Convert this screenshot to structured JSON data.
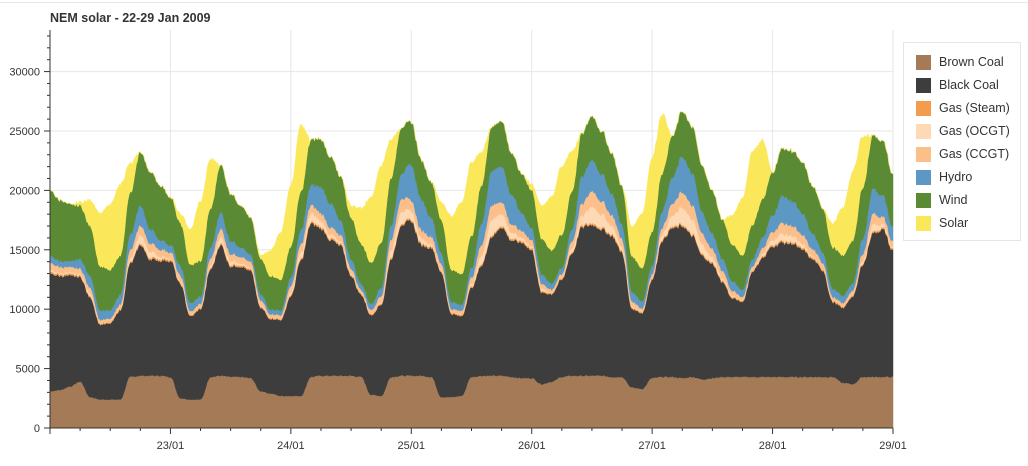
{
  "chart_data": {
    "type": "area",
    "stacked": true,
    "title": "NEM solar - 22-29 Jan 2009",
    "xlabel": "",
    "ylabel": "",
    "x_range": [
      "2009-01-22 00:00",
      "2009-01-29 00:00"
    ],
    "x_ticks": [
      "23/01",
      "24/01",
      "25/01",
      "26/01",
      "27/01",
      "28/01",
      "29/01"
    ],
    "y_ticks": [
      0,
      5000,
      10000,
      15000,
      20000,
      25000,
      30000
    ],
    "ylim": [
      0,
      33500
    ],
    "grid": true,
    "legend_position": "right",
    "time_hours": [
      0,
      2,
      4,
      6,
      8,
      10,
      12,
      14,
      16,
      18,
      20,
      22,
      24,
      26,
      28,
      30,
      32,
      34,
      36,
      38,
      40,
      42,
      44,
      46,
      48,
      50,
      52,
      54,
      56,
      58,
      60,
      62,
      64,
      66,
      68,
      70,
      72,
      74,
      76,
      78,
      80,
      82,
      84,
      86,
      88,
      90,
      92,
      94,
      96,
      98,
      100,
      102,
      104,
      106,
      108,
      110,
      112,
      114,
      116,
      118,
      120,
      122,
      124,
      126,
      128,
      130,
      132,
      134,
      136,
      138,
      140,
      142,
      144,
      146,
      148,
      150,
      152,
      154,
      156,
      158,
      160,
      162,
      164,
      166,
      168
    ],
    "series": [
      {
        "name": "Brown Coal",
        "color": "#a57a56",
        "values": [
          3100,
          3200,
          3500,
          3900,
          2600,
          2400,
          2400,
          2400,
          4300,
          4400,
          4400,
          4400,
          4300,
          2500,
          2400,
          2400,
          4300,
          4400,
          4300,
          4300,
          4200,
          3100,
          2900,
          2700,
          2700,
          2700,
          4300,
          4400,
          4400,
          4400,
          4400,
          4300,
          2800,
          2700,
          4300,
          4400,
          4400,
          4400,
          4300,
          2600,
          2600,
          2700,
          4300,
          4400,
          4400,
          4400,
          4300,
          4200,
          4200,
          3700,
          3900,
          4300,
          4400,
          4400,
          4400,
          4400,
          4300,
          4300,
          3400,
          3300,
          4200,
          4300,
          4300,
          4200,
          4300,
          4100,
          4200,
          4300,
          4300,
          4300,
          4300,
          4300,
          4300,
          4300,
          4300,
          4300,
          4300,
          4300,
          4300,
          3800,
          3700,
          4300,
          4300,
          4300,
          4300
        ]
      },
      {
        "name": "Black Coal",
        "color": "#3d3d3d",
        "values": [
          9900,
          9600,
          9300,
          8800,
          8400,
          6300,
          6400,
          7500,
          9500,
          11000,
          9800,
          9700,
          9800,
          9600,
          7000,
          7600,
          9100,
          11000,
          9300,
          9300,
          9000,
          7000,
          6300,
          6400,
          8400,
          11400,
          12900,
          12400,
          11400,
          10900,
          8400,
          6900,
          6700,
          7700,
          10000,
          12700,
          13000,
          11000,
          10900,
          10500,
          7000,
          6700,
          7500,
          9300,
          11700,
          12500,
          11500,
          11400,
          10800,
          7700,
          7400,
          8200,
          10300,
          12500,
          12700,
          12300,
          11900,
          10500,
          6600,
          6400,
          8300,
          11500,
          12500,
          12800,
          11900,
          10400,
          9600,
          8000,
          6600,
          6300,
          8900,
          10000,
          11000,
          11300,
          11200,
          10700,
          9900,
          9000,
          6300,
          6300,
          7400,
          9500,
          12100,
          12400,
          10600
        ]
      },
      {
        "name": "Gas (Steam)",
        "color": "#f39c4e",
        "values": [
          150,
          150,
          150,
          150,
          120,
          100,
          100,
          100,
          120,
          150,
          150,
          150,
          150,
          120,
          100,
          100,
          120,
          150,
          150,
          150,
          150,
          120,
          100,
          100,
          120,
          150,
          150,
          150,
          150,
          150,
          120,
          100,
          100,
          120,
          150,
          150,
          150,
          150,
          150,
          120,
          100,
          100,
          120,
          150,
          150,
          150,
          150,
          150,
          150,
          120,
          100,
          100,
          120,
          150,
          150,
          150,
          150,
          150,
          120,
          100,
          100,
          120,
          150,
          150,
          150,
          150,
          150,
          150,
          120,
          100,
          100,
          120,
          150,
          150,
          150,
          150,
          150,
          150,
          120,
          100,
          100,
          120,
          150,
          150,
          150
        ]
      },
      {
        "name": "Gas (OCGT)",
        "color": "#fdd9b5",
        "values": [
          150,
          120,
          100,
          120,
          200,
          0,
          0,
          0,
          300,
          700,
          500,
          200,
          100,
          100,
          0,
          0,
          200,
          500,
          300,
          150,
          100,
          100,
          0,
          0,
          200,
          500,
          700,
          500,
          300,
          150,
          100,
          0,
          0,
          100,
          600,
          1000,
          700,
          400,
          200,
          100,
          0,
          0,
          200,
          700,
          1300,
          1000,
          500,
          250,
          150,
          200,
          0,
          0,
          300,
          800,
          1400,
          1100,
          700,
          300,
          100,
          0,
          0,
          400,
          900,
          1400,
          1200,
          800,
          400,
          200,
          100,
          0,
          0,
          200,
          400,
          600,
          500,
          300,
          100,
          0,
          0,
          0,
          0,
          200,
          600,
          300,
          100
        ]
      },
      {
        "name": "Gas (CCGT)",
        "color": "#fdbf8a",
        "values": [
          600,
          500,
          450,
          450,
          500,
          300,
          300,
          400,
          700,
          800,
          700,
          600,
          500,
          500,
          300,
          350,
          600,
          700,
          600,
          550,
          500,
          400,
          300,
          300,
          550,
          700,
          700,
          650,
          600,
          550,
          400,
          300,
          350,
          500,
          900,
          1100,
          900,
          700,
          600,
          500,
          300,
          350,
          550,
          900,
          1200,
          1000,
          700,
          600,
          550,
          400,
          300,
          350,
          600,
          1000,
          1300,
          1100,
          900,
          700,
          400,
          300,
          350,
          600,
          1000,
          1300,
          1200,
          900,
          700,
          600,
          400,
          300,
          350,
          500,
          700,
          900,
          850,
          750,
          600,
          500,
          300,
          300,
          400,
          600,
          900,
          600,
          500
        ]
      },
      {
        "name": "Hydro",
        "color": "#5d97c3",
        "values": [
          600,
          500,
          500,
          800,
          1000,
          800,
          700,
          800,
          1300,
          1700,
          1200,
          800,
          600,
          800,
          700,
          600,
          900,
          1400,
          1100,
          800,
          600,
          500,
          400,
          400,
          700,
          1200,
          1700,
          2200,
          2000,
          1200,
          800,
          500,
          500,
          700,
          1200,
          2100,
          3000,
          2600,
          1600,
          900,
          600,
          500,
          800,
          1800,
          2900,
          3000,
          2500,
          1500,
          1000,
          800,
          500,
          500,
          1000,
          2300,
          2600,
          2300,
          1800,
          1200,
          800,
          600,
          700,
          1400,
          2200,
          3000,
          2700,
          1800,
          1300,
          1000,
          800,
          600,
          600,
          900,
          1400,
          2300,
          2100,
          1800,
          1300,
          900,
          700,
          600,
          600,
          1300,
          2100,
          1800,
          1200
        ]
      },
      {
        "name": "Wind",
        "color": "#5a8b34",
        "values": [
          5500,
          5100,
          4800,
          4500,
          4200,
          3700,
          3400,
          3300,
          3500,
          4500,
          4800,
          4600,
          4000,
          3600,
          3200,
          3000,
          3300,
          4000,
          4000,
          3500,
          3100,
          3000,
          2800,
          2600,
          2600,
          3200,
          3800,
          4000,
          3900,
          3700,
          3500,
          3400,
          3500,
          3800,
          4000,
          3900,
          3600,
          3300,
          3000,
          2800,
          2700,
          2600,
          2700,
          3200,
          3700,
          3800,
          3500,
          3300,
          3200,
          3000,
          2800,
          2800,
          3200,
          3600,
          3700,
          3600,
          3400,
          3200,
          3000,
          2800,
          2900,
          3200,
          3500,
          3800,
          3900,
          3900,
          3600,
          3300,
          3100,
          2900,
          2900,
          3200,
          3600,
          4000,
          4200,
          4300,
          4000,
          3700,
          3500,
          3400,
          3600,
          4300,
          4500,
          4600,
          4400
        ]
      },
      {
        "name": "Solar",
        "color": "#fbe85a",
        "values": [
          0,
          0,
          0,
          300,
          2200,
          4500,
          5500,
          6000,
          2500,
          0,
          0,
          0,
          0,
          800,
          3000,
          5000,
          4200,
          0,
          0,
          0,
          0,
          300,
          2200,
          4000,
          5200,
          5700,
          0,
          0,
          0,
          0,
          1000,
          3000,
          5500,
          6500,
          3200,
          0,
          0,
          0,
          0,
          1500,
          4500,
          6000,
          6200,
          2800,
          0,
          0,
          0,
          0,
          500,
          2800,
          4500,
          5800,
          3400,
          0,
          0,
          0,
          0,
          0,
          2500,
          4600,
          6200,
          5000,
          0,
          0,
          0,
          0,
          0,
          0,
          2500,
          4800,
          6200,
          5000,
          0,
          0,
          0,
          0,
          0,
          0,
          2000,
          4000,
          5800,
          4300,
          0,
          0,
          0
        ]
      }
    ]
  }
}
